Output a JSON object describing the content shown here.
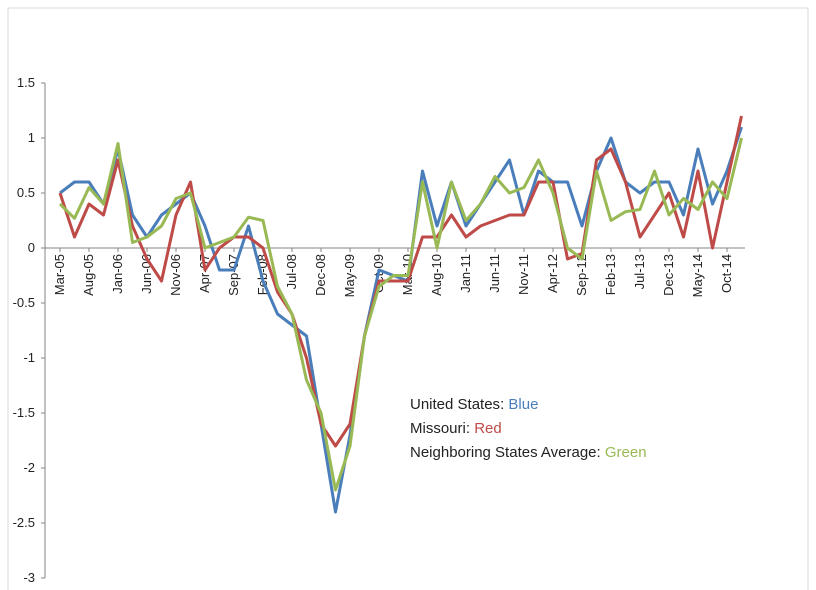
{
  "chart_data": {
    "type": "line",
    "categories": [
      "Mar-05",
      null,
      "Aug-05",
      null,
      "Jan-06",
      null,
      "Jun-06",
      null,
      "Nov-06",
      null,
      "Apr-07",
      null,
      "Sep-07",
      null,
      "Feb-08",
      null,
      "Jul-08",
      null,
      "Dec-08",
      null,
      "May-09",
      null,
      "Oct-09",
      null,
      "Mar-10",
      null,
      "Aug-10",
      null,
      "Jan-11",
      null,
      "Jun-11",
      null,
      "Nov-11",
      null,
      "Apr-12",
      null,
      "Sep-12",
      null,
      "Feb-13",
      null,
      "Jul-13",
      null,
      "Dec-13",
      null,
      "May-14",
      null,
      "Oct-14",
      null
    ],
    "series": [
      {
        "name": "United States",
        "color_name": "Blue",
        "color": "#4a7ebb",
        "values": [
          0.5,
          0.6,
          0.6,
          0.4,
          0.9,
          0.3,
          0.1,
          0.3,
          0.4,
          0.5,
          0.2,
          -0.2,
          -0.2,
          0.2,
          -0.3,
          -0.6,
          -0.7,
          -0.8,
          -1.6,
          -2.4,
          -1.7,
          -0.8,
          -0.2,
          -0.25,
          -0.3,
          0.7,
          0.2,
          0.6,
          0.2,
          0.4,
          0.6,
          0.8,
          0.3,
          0.7,
          0.6,
          0.6,
          0.2,
          0.7,
          1.0,
          0.6,
          0.5,
          0.6,
          0.6,
          0.3,
          0.9,
          0.4,
          0.7,
          1.1
        ]
      },
      {
        "name": "Missouri",
        "color_name": "Red",
        "color": "#be4b48",
        "values": [
          0.5,
          0.1,
          0.4,
          0.3,
          0.8,
          0.2,
          -0.1,
          -0.3,
          0.3,
          0.6,
          -0.2,
          0.0,
          0.1,
          0.1,
          0.0,
          -0.4,
          -0.6,
          -1.0,
          -1.6,
          -1.8,
          -1.6,
          -0.8,
          -0.3,
          -0.3,
          -0.3,
          0.1,
          0.1,
          0.3,
          0.1,
          0.2,
          0.25,
          0.3,
          0.3,
          0.6,
          0.6,
          -0.1,
          -0.05,
          0.8,
          0.9,
          0.6,
          0.1,
          0.3,
          0.5,
          0.1,
          0.7,
          0.0,
          0.6,
          1.2
        ]
      },
      {
        "name": "Neighboring States Average",
        "color_name": "Green",
        "color": "#98b954",
        "values": [
          0.4,
          0.27,
          0.55,
          0.4,
          0.95,
          0.05,
          0.1,
          0.2,
          0.45,
          0.5,
          0.0,
          0.05,
          0.1,
          0.28,
          0.25,
          -0.35,
          -0.6,
          -1.2,
          -1.5,
          -2.2,
          -1.8,
          -0.8,
          -0.35,
          -0.25,
          -0.25,
          0.6,
          0.0,
          0.6,
          0.25,
          0.4,
          0.65,
          0.5,
          0.55,
          0.8,
          0.5,
          0.0,
          -0.1,
          0.7,
          0.25,
          0.33,
          0.35,
          0.7,
          0.3,
          0.45,
          0.35,
          0.6,
          0.45,
          1.0
        ]
      }
    ],
    "legend_separator": ": ",
    "ylim": [
      -3,
      1.5
    ],
    "yticks": [
      -3,
      -2.5,
      -2,
      -1.5,
      -1,
      -0.5,
      0,
      0.5,
      1,
      1.5
    ],
    "grid": false
  }
}
